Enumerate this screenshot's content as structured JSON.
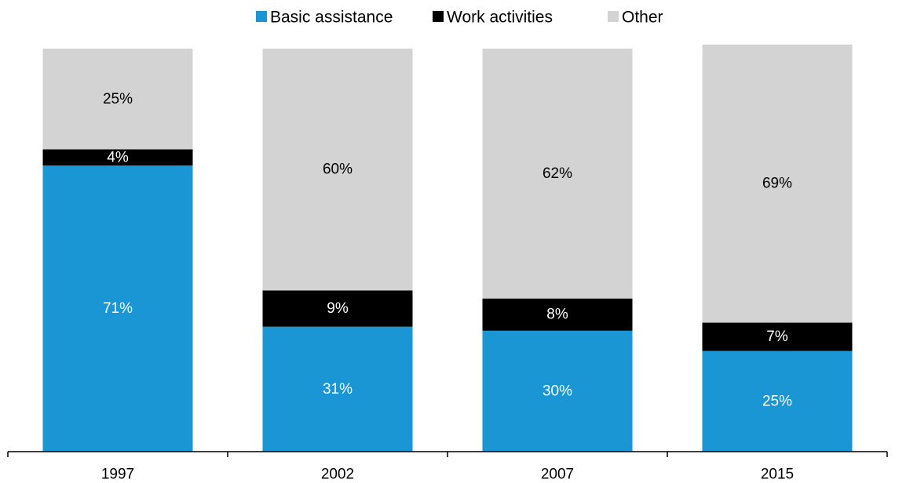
{
  "chart_data": {
    "type": "bar",
    "stacked": true,
    "percent_stacked": true,
    "categories": [
      "1997",
      "2002",
      "2007",
      "2015"
    ],
    "series": [
      {
        "name": "Basic assistance",
        "color": "#1a96d4",
        "label_color": "#ffffff",
        "values": [
          71,
          31,
          30,
          25
        ],
        "labels": [
          "71%",
          "31%",
          "30%",
          "25%"
        ]
      },
      {
        "name": "Work activities",
        "color": "#000000",
        "label_color": "#ffffff",
        "values": [
          4,
          9,
          8,
          7
        ],
        "labels": [
          "4%",
          "9%",
          "8%",
          "7%"
        ]
      },
      {
        "name": "Other",
        "color": "#d3d3d3",
        "label_color": "#000000",
        "values": [
          25,
          60,
          62,
          69
        ],
        "labels": [
          "25%",
          "60%",
          "62%",
          "69%"
        ]
      }
    ],
    "ylim": [
      0,
      100
    ],
    "grid": false,
    "legend_position": "top-center",
    "title": "",
    "xlabel": "",
    "ylabel": ""
  }
}
